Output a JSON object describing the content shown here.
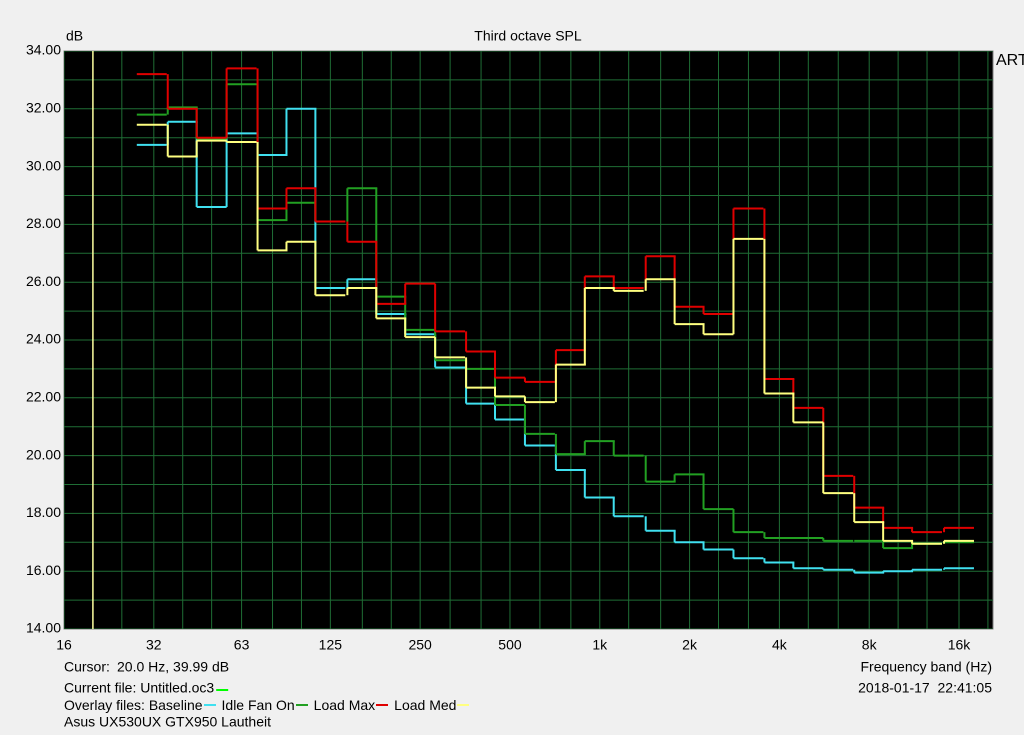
{
  "chart_data": {
    "type": "step",
    "title": "Third octave SPL",
    "y_label": "dB",
    "x_label": "Frequency band (Hz)",
    "brand": "ARTA",
    "x": [
      31.5,
      40,
      50,
      63,
      80,
      100,
      125,
      160,
      200,
      250,
      315,
      400,
      500,
      630,
      800,
      1000,
      1250,
      1600,
      2000,
      2500,
      3150,
      4000,
      5000,
      6300,
      8000,
      10000,
      12500,
      16000
    ],
    "series": [
      {
        "name": "Baseline",
        "color": "#40e0f0",
        "values": [
          30.75,
          31.55,
          28.6,
          31.15,
          30.4,
          32.0,
          25.8,
          26.1,
          24.9,
          24.2,
          23.05,
          21.8,
          21.25,
          20.35,
          19.5,
          18.55,
          17.9,
          17.4,
          17.0,
          16.75,
          16.45,
          16.3,
          16.1,
          16.05,
          15.95,
          16.0,
          16.05,
          16.1
        ]
      },
      {
        "name": "Idle Fan On",
        "color": "#22a022",
        "values": [
          31.8,
          32.05,
          30.95,
          32.85,
          28.15,
          28.75,
          28.1,
          29.25,
          25.5,
          24.35,
          23.3,
          23.0,
          21.75,
          20.75,
          20.05,
          20.5,
          20.0,
          19.1,
          19.35,
          18.15,
          17.35,
          17.15,
          17.15,
          17.05,
          17.05,
          16.8,
          16.95,
          17.0
        ]
      },
      {
        "name": "Load Max",
        "color": "#e00000",
        "values": [
          33.2,
          32.0,
          31.0,
          33.4,
          28.55,
          29.25,
          28.1,
          27.4,
          25.25,
          25.95,
          24.3,
          23.6,
          22.7,
          22.55,
          23.65,
          26.2,
          25.8,
          26.9,
          25.15,
          24.9,
          28.55,
          22.65,
          21.65,
          19.3,
          18.2,
          17.5,
          17.35,
          17.5
        ]
      },
      {
        "name": "Load Med",
        "color": "#ffff80",
        "values": [
          31.45,
          30.35,
          30.9,
          30.85,
          27.1,
          27.4,
          25.55,
          25.8,
          24.75,
          24.1,
          23.4,
          22.35,
          22.05,
          21.85,
          23.15,
          25.8,
          25.7,
          26.1,
          24.55,
          24.2,
          27.5,
          22.15,
          21.15,
          18.7,
          17.7,
          17.05,
          16.95,
          17.05
        ]
      }
    ],
    "xscale": "log",
    "xlim": [
      16,
      20800
    ],
    "ylim": [
      14,
      34
    ],
    "xticks": [
      16,
      32,
      63,
      125,
      250,
      500,
      {
        "value": 1000,
        "label": "1k"
      },
      {
        "value": 2000,
        "label": "2k"
      },
      {
        "value": 4000,
        "label": "4k"
      },
      {
        "value": 8000,
        "label": "8k"
      },
      {
        "value": 16000,
        "label": "16k"
      }
    ],
    "yticks": [
      {
        "value": 14,
        "label": "14.00"
      },
      {
        "value": 16,
        "label": "16.00"
      },
      {
        "value": 18,
        "label": "18.00"
      },
      {
        "value": 20,
        "label": "20.00"
      },
      {
        "value": 22,
        "label": "22.00"
      },
      {
        "value": 24,
        "label": "24.00"
      },
      {
        "value": 26,
        "label": "26.00"
      },
      {
        "value": 28,
        "label": "28.00"
      },
      {
        "value": 30,
        "label": "30.00"
      },
      {
        "value": 32,
        "label": "32.00"
      },
      {
        "value": 34,
        "label": "34.00"
      }
    ],
    "xminor": [
      20,
      25,
      40,
      50,
      80,
      100,
      160,
      200,
      315,
      400,
      630,
      800,
      1250,
      1600,
      2500,
      3150,
      5000,
      6300,
      10000,
      12500,
      20000
    ],
    "yminor": [
      15,
      17,
      19,
      21,
      23,
      25,
      27,
      29,
      31,
      33
    ],
    "grid": true,
    "background": "#000000",
    "grid_color": "#1f6e35"
  },
  "status": {
    "cursor_label": "Cursor:",
    "cursor_value": "20.0 Hz, 39.99 dB",
    "cursor_x": 20,
    "cursor_color": "#ffffa0",
    "current_file": "Current file: Untitled.oc3",
    "current_file_color": "#00ff00",
    "overlay_label": "Overlay files:",
    "timestamp": "2018-01-17  22:41:05",
    "note": "Asus UX530UX GTX950 Lautheit"
  }
}
